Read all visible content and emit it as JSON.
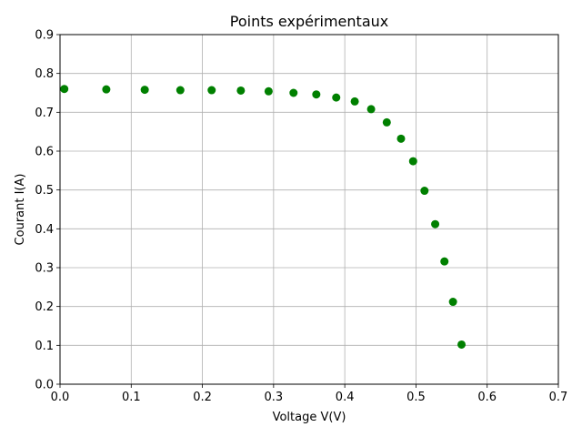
{
  "chart_data": {
    "type": "scatter",
    "title": "Points expérimentaux",
    "xlabel": "Voltage V(V)",
    "ylabel": "Courant I(A)",
    "xlim": [
      0,
      0.7
    ],
    "ylim": [
      0,
      0.9
    ],
    "xticks": [
      0.0,
      0.1,
      0.2,
      0.3,
      0.4,
      0.5,
      0.6,
      0.7
    ],
    "yticks": [
      0.0,
      0.1,
      0.2,
      0.3,
      0.4,
      0.5,
      0.6,
      0.7,
      0.8,
      0.9
    ],
    "xtick_labels": [
      "0.0",
      "0.1",
      "0.2",
      "0.3",
      "0.4",
      "0.5",
      "0.6",
      "0.7"
    ],
    "ytick_labels": [
      "0.0",
      "0.1",
      "0.2",
      "0.3",
      "0.4",
      "0.5",
      "0.6",
      "0.7",
      "0.8",
      "0.9"
    ],
    "grid": true,
    "color": "#008000",
    "series": [
      {
        "x": [
          0.006,
          0.065,
          0.119,
          0.169,
          0.213,
          0.254,
          0.293,
          0.328,
          0.36,
          0.388,
          0.414,
          0.437,
          0.459,
          0.479,
          0.496,
          0.512,
          0.527,
          0.54,
          0.552,
          0.564
        ],
        "y": [
          0.76,
          0.759,
          0.758,
          0.757,
          0.757,
          0.756,
          0.754,
          0.75,
          0.746,
          0.738,
          0.728,
          0.708,
          0.674,
          0.632,
          0.574,
          0.498,
          0.412,
          0.316,
          0.212,
          0.102
        ]
      }
    ]
  }
}
